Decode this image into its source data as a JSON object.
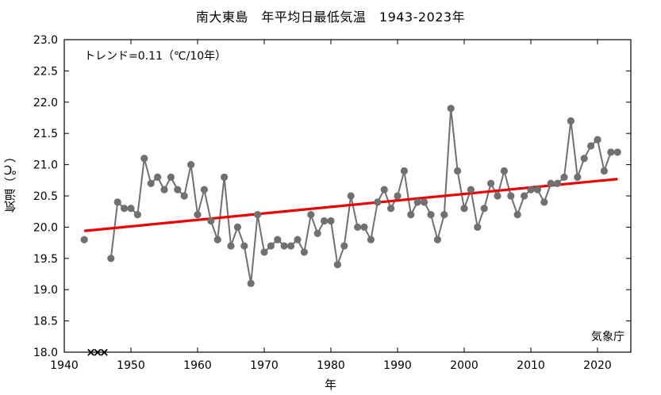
{
  "chart_data": {
    "type": "line",
    "title": "南大東島　年平均日最低気温　1943-2023年",
    "xlabel": "年",
    "ylabel": "気温（℃）",
    "annotation_trend": "トレンド=0.11（℃/10年）",
    "source": "気象庁",
    "xlim": [
      1940,
      2025
    ],
    "ylim": [
      18.0,
      23.0
    ],
    "x_ticks": [
      1940,
      1950,
      1960,
      1970,
      1980,
      1990,
      2000,
      2010,
      2020
    ],
    "y_ticks": [
      "18.0",
      "18.5",
      "19.0",
      "19.5",
      "20.0",
      "20.5",
      "21.0",
      "21.5",
      "22.0",
      "22.5",
      "23.0"
    ],
    "grid": false,
    "series": [
      {
        "color": "#707070",
        "x": [
          1943,
          1947,
          1948,
          1949,
          1950,
          1951,
          1952,
          1953,
          1954,
          1955,
          1956,
          1957,
          1958,
          1959,
          1960,
          1961,
          1962,
          1963,
          1964,
          1965,
          1966,
          1967,
          1968,
          1969,
          1970,
          1971,
          1972,
          1973,
          1974,
          1975,
          1976,
          1977,
          1978,
          1979,
          1980,
          1981,
          1982,
          1983,
          1984,
          1985,
          1986,
          1987,
          1988,
          1989,
          1990,
          1991,
          1992,
          1993,
          1994,
          1995,
          1996,
          1997,
          1998,
          1999,
          2000,
          2001,
          2002,
          2003,
          2004,
          2005,
          2006,
          2007,
          2008,
          2009,
          2010,
          2011,
          2012,
          2013,
          2014,
          2015,
          2016,
          2017,
          2018,
          2019,
          2020,
          2021,
          2022,
          2023
        ],
        "y": [
          19.8,
          19.5,
          20.4,
          20.3,
          20.3,
          20.2,
          21.1,
          20.7,
          20.8,
          20.6,
          20.8,
          20.6,
          20.5,
          21.0,
          20.2,
          20.6,
          20.1,
          19.8,
          20.8,
          19.7,
          20.0,
          19.7,
          19.1,
          20.2,
          19.6,
          19.7,
          19.8,
          19.7,
          19.7,
          19.8,
          19.6,
          20.2,
          19.9,
          20.1,
          20.1,
          19.4,
          19.7,
          20.5,
          20.0,
          20.0,
          19.8,
          20.4,
          20.6,
          20.3,
          20.5,
          20.9,
          20.2,
          20.4,
          20.4,
          20.2,
          19.8,
          20.2,
          21.9,
          20.9,
          20.3,
          20.6,
          20.0,
          20.3,
          20.7,
          20.5,
          20.9,
          20.5,
          20.2,
          20.5,
          20.6,
          20.6,
          20.4,
          20.7,
          20.7,
          20.8,
          21.7,
          20.8,
          21.1,
          21.3,
          21.4,
          20.9,
          21.2,
          21.2
        ]
      }
    ],
    "trend_line": {
      "color": "#ee0000",
      "x": [
        1943,
        2023
      ],
      "y": [
        19.94,
        20.77
      ]
    },
    "missing_marks": {
      "symbol": "×",
      "x": [
        1944,
        1945,
        1946
      ],
      "y": 18.0
    }
  }
}
